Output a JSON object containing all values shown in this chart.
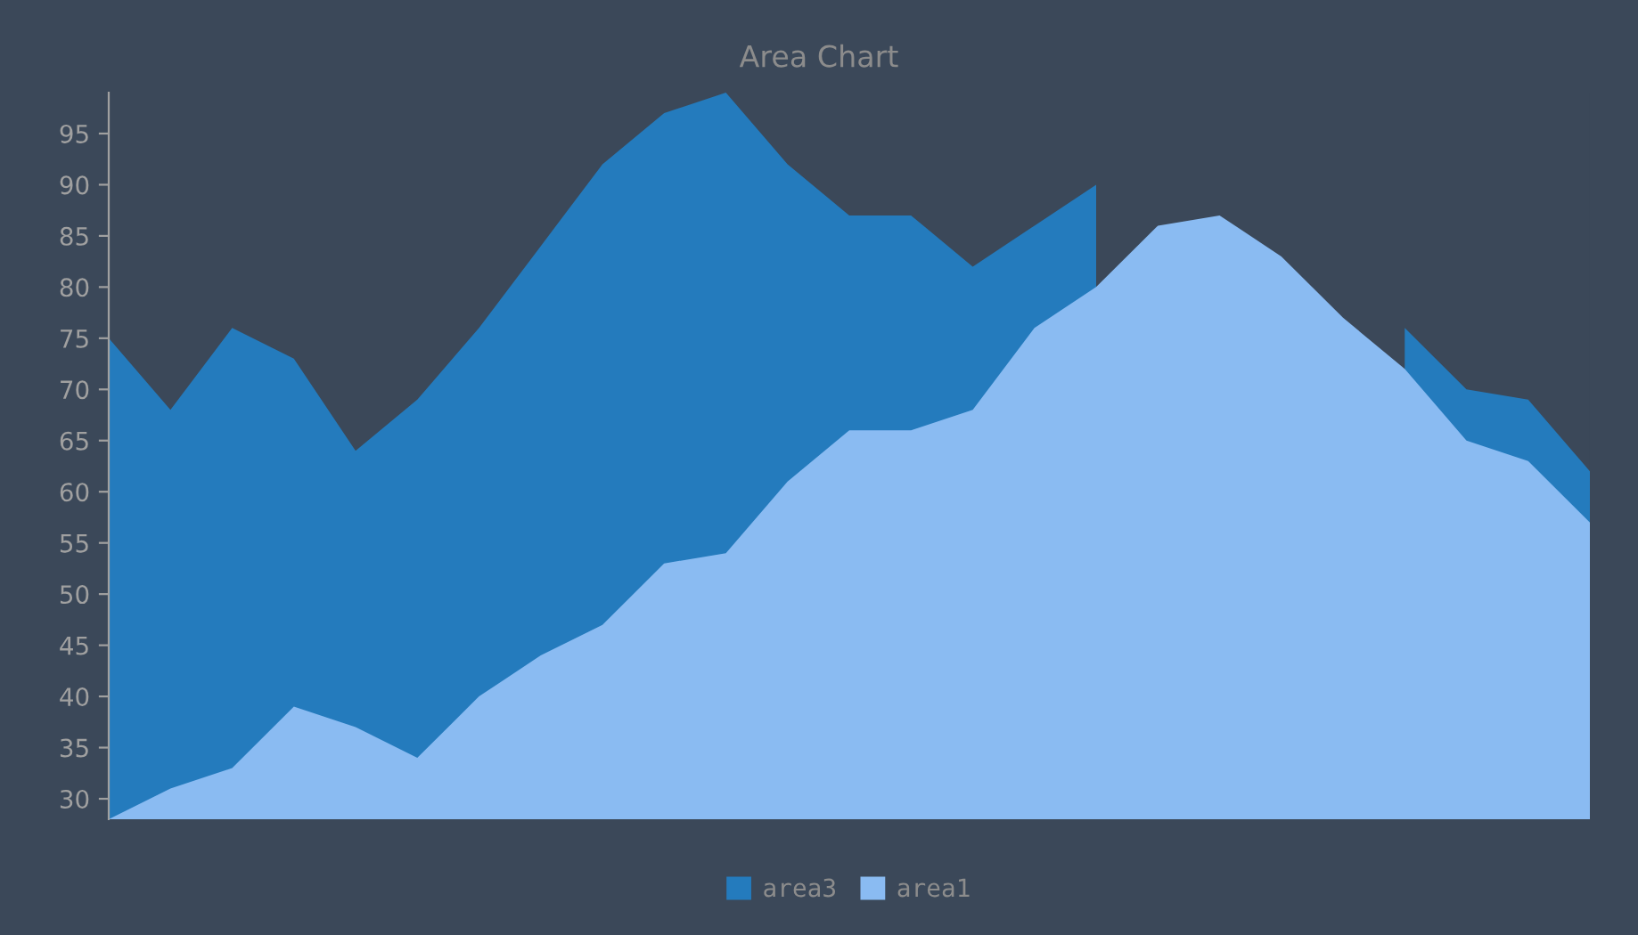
{
  "chart_data": {
    "type": "area",
    "title": "Area Chart",
    "categories": [
      null,
      null,
      null,
      null,
      null,
      null,
      null,
      null,
      null,
      null,
      null,
      null,
      null,
      null,
      null,
      null,
      null,
      null,
      null,
      null,
      null,
      null,
      null,
      null,
      null
    ],
    "series": [
      {
        "name": "area3",
        "color": "#247bbd",
        "values": [
          75,
          68,
          76,
          73,
          64,
          69,
          76,
          84,
          92,
          97,
          99,
          92,
          87,
          87,
          82,
          86,
          90,
          null,
          null,
          null,
          null,
          76,
          70,
          69,
          62
        ]
      },
      {
        "name": "area1",
        "color": "#8abbf2",
        "values": [
          28,
          31,
          33,
          39,
          37,
          34,
          40,
          44,
          47,
          53,
          54,
          61,
          66,
          66,
          68,
          76,
          80,
          86,
          87,
          83,
          77,
          72,
          65,
          63,
          57
        ]
      }
    ],
    "ylim": [
      28,
      99
    ],
    "yticks": [
      30,
      35,
      40,
      45,
      50,
      55,
      60,
      65,
      70,
      75,
      80,
      85,
      90,
      95
    ],
    "grid": false,
    "legend": "bottom",
    "tick_labels": "y"
  }
}
